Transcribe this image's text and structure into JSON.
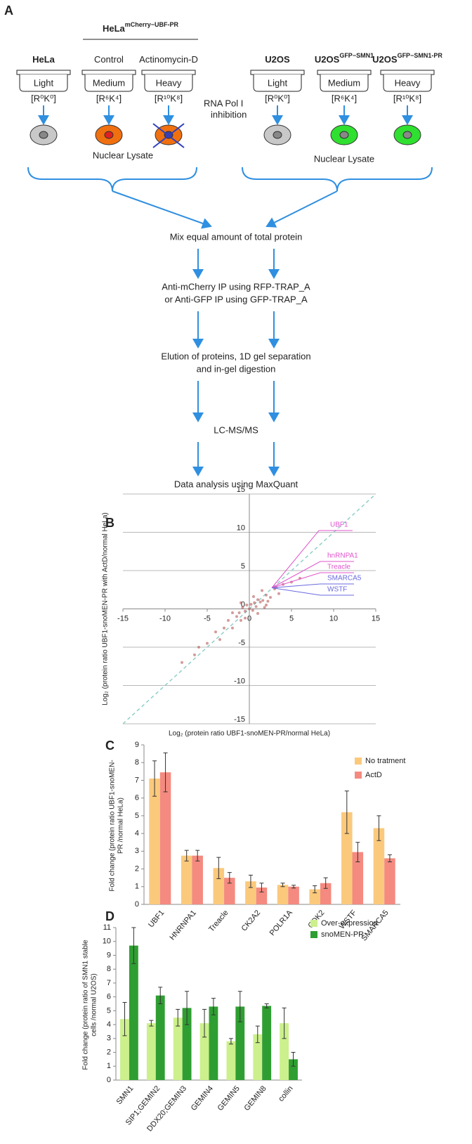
{
  "panel_a": {
    "label": "A",
    "group_title": {
      "base": "HeLa",
      "sup": "mCherry−UBF-PR"
    },
    "columns": [
      {
        "title": "HeLa",
        "dish": "Light",
        "medium": "[R⁰K⁰]"
      },
      {
        "title": "Control",
        "dish": "Medium",
        "medium": "[R⁶K⁴]"
      },
      {
        "title": "Actinomycin-D",
        "dish": "Heavy",
        "medium": "[R¹⁰K⁸]"
      },
      {
        "title": "U2OS",
        "dish": "Light",
        "medium": "[R⁰K⁰]"
      },
      {
        "title": "U2OS",
        "title_sup": "GFP−SMN1",
        "dish": "Medium",
        "medium": "[R⁶K⁴]"
      },
      {
        "title": "U2OS",
        "title_sup": "GFP−SMN1-PR",
        "dish": "Heavy",
        "medium": "[R¹⁰K⁸]"
      }
    ],
    "inhibition": [
      "RNA Pol I",
      "inhibition"
    ],
    "lysate_left": "Nuclear Lysate",
    "lysate_right": "Nuclear Lysate",
    "steps": [
      [
        "Mix equal amount of total protein"
      ],
      [
        "Anti-mCherry IP using RFP-TRAP_A",
        "or Anti-GFP IP using GFP-TRAP_A"
      ],
      [
        "Elution of proteins, 1D gel separation",
        "and in-gel digestion"
      ],
      [
        "LC-MS/MS"
      ],
      [
        "Data analysis using MaxQuant"
      ]
    ]
  },
  "chart_data": [
    {
      "type": "scatter",
      "panel_label": "B",
      "xlabel": "Log₂ (protein ratio UBF1-snoMEN-PR/normal HeLa)",
      "ylabel": "Log₂ (protein ratio  UBF1-snoMEN-PR with ActD/normal HeLa)",
      "xlim": [
        -15,
        15
      ],
      "ylim": [
        -15,
        15
      ],
      "xticks": [
        -15,
        -10,
        -5,
        0,
        5,
        10,
        15
      ],
      "yticks": [
        15,
        10,
        5,
        0,
        -5,
        -10,
        -15
      ],
      "grid": true,
      "diagonal": true,
      "color": "#b04848",
      "x": [
        -8,
        -6,
        -5,
        -4,
        -3.5,
        -3,
        -2.5,
        -2,
        -1.5,
        -1.2,
        -1,
        -0.8,
        -0.5,
        -0.3,
        0,
        0.2,
        0.4,
        0.6,
        0.8,
        1,
        1.3,
        1.6,
        2,
        2.5,
        3,
        3.5,
        4,
        5,
        6,
        -2,
        -1,
        1,
        2,
        0.5,
        -0.5,
        3.2,
        1.5,
        1.8,
        2.2,
        -6.5
      ],
      "y": [
        -7,
        -5,
        -4.5,
        -3,
        -4,
        -2.5,
        -1.5,
        -2.5,
        -1,
        -0.5,
        -1.5,
        0.2,
        -0.3,
        0.5,
        0,
        0.6,
        -0.2,
        0.8,
        0.3,
        1.2,
        0.9,
        1.1,
        1.8,
        1.5,
        2.6,
        2,
        3.2,
        3.5,
        4,
        -0.5,
        0.8,
        -0.6,
        0.5,
        1.6,
        -1.2,
        2.8,
        2.4,
        0.2,
        1,
        -6
      ],
      "annotations": [
        {
          "text": "UBF1",
          "color": "#e055cc"
        },
        {
          "text": "hnRNPA1",
          "color": "#e055cc"
        },
        {
          "text": "Treacle",
          "color": "#e055cc"
        },
        {
          "text": "SMARCA5",
          "color": "#6a6ae0"
        },
        {
          "text": "WSTF",
          "color": "#6a6ae0"
        }
      ]
    },
    {
      "type": "bar",
      "panel_label": "C",
      "ylabel": [
        "Fold change (protein ratio  UBF1-snoMEN-",
        "PR /normal HeLa)"
      ],
      "categories": [
        "UBF1",
        "HNRNPA1",
        "Treacle",
        "CK2A2",
        "POLR1A",
        "CDK2",
        "WSTF",
        "SMARCA5"
      ],
      "ylim": [
        0,
        9
      ],
      "yticks": [
        0,
        1,
        2,
        3,
        4,
        5,
        6,
        7,
        8,
        9
      ],
      "legend": "top-right",
      "series": [
        {
          "name": "No tratment",
          "color": "#fbc97c",
          "values": [
            7.1,
            2.75,
            2.05,
            1.3,
            1.1,
            0.85,
            5.2,
            4.3
          ],
          "errors": [
            1,
            0.3,
            0.6,
            0.35,
            0.1,
            0.2,
            1.2,
            0.7
          ]
        },
        {
          "name": "ActD",
          "color": "#f48a80",
          "values": [
            7.45,
            2.75,
            1.5,
            0.95,
            1,
            1.2,
            2.95,
            2.6
          ],
          "errors": [
            1.1,
            0.3,
            0.3,
            0.25,
            0.08,
            0.3,
            0.55,
            0.2
          ]
        }
      ]
    },
    {
      "type": "bar",
      "panel_label": "D",
      "ylabel": [
        "Fold change (protein ratio of SMN1 stable",
        "cells /normal U2OS)"
      ],
      "categories": [
        "SMN1",
        "SIP1;GEMIN2",
        "DDX20;GEMIN3",
        "GEMIN4",
        "GEMIN5",
        "GEMIN8",
        "collin"
      ],
      "ylim": [
        0,
        11
      ],
      "yticks": [
        0,
        1,
        2,
        3,
        4,
        5,
        6,
        7,
        8,
        9,
        10,
        11
      ],
      "legend": "top-right",
      "series": [
        {
          "name": "Over-expression",
          "color": "#ccf08c",
          "values": [
            4.4,
            4.1,
            4.5,
            4.1,
            2.8,
            3.3,
            4.1
          ],
          "errors": [
            1.2,
            0.2,
            0.6,
            1,
            0.2,
            0.6,
            1.1
          ]
        },
        {
          "name": "snoMEN-PR",
          "color": "#2f9e32",
          "values": [
            9.7,
            6.1,
            5.2,
            5.3,
            5.3,
            5.35,
            1.5
          ],
          "errors": [
            1.3,
            0.6,
            1.2,
            0.6,
            1.1,
            0.15,
            0.5
          ]
        }
      ]
    }
  ]
}
